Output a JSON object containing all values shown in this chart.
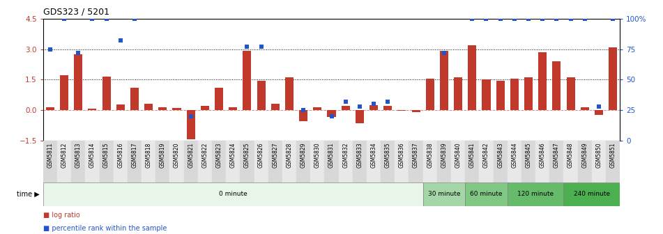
{
  "title": "GDS323 / 5201",
  "samples": [
    "GSM5811",
    "GSM5812",
    "GSM5813",
    "GSM5814",
    "GSM5815",
    "GSM5816",
    "GSM5817",
    "GSM5818",
    "GSM5819",
    "GSM5820",
    "GSM5821",
    "GSM5822",
    "GSM5823",
    "GSM5824",
    "GSM5825",
    "GSM5826",
    "GSM5827",
    "GSM5828",
    "GSM5829",
    "GSM5830",
    "GSM5831",
    "GSM5832",
    "GSM5833",
    "GSM5834",
    "GSM5835",
    "GSM5836",
    "GSM5837",
    "GSM5838",
    "GSM5839",
    "GSM5840",
    "GSM5841",
    "GSM5842",
    "GSM5843",
    "GSM5844",
    "GSM5845",
    "GSM5846",
    "GSM5847",
    "GSM5848",
    "GSM5849",
    "GSM5850",
    "GSM5851"
  ],
  "log_ratio": [
    0.15,
    1.7,
    2.75,
    0.07,
    1.65,
    0.28,
    1.1,
    0.3,
    0.15,
    0.1,
    -1.45,
    0.2,
    1.1,
    0.15,
    2.9,
    1.45,
    0.3,
    1.6,
    -0.55,
    0.15,
    -0.35,
    0.2,
    -0.65,
    0.25,
    0.2,
    -0.05,
    -0.1,
    1.55,
    2.9,
    1.6,
    3.2,
    1.5,
    1.45,
    1.55,
    1.6,
    2.85,
    2.4,
    1.6,
    0.15,
    -0.25,
    3.1
  ],
  "percentile": [
    75,
    100,
    72,
    100,
    100,
    82,
    100,
    null,
    null,
    null,
    20,
    null,
    null,
    null,
    77,
    77,
    null,
    null,
    25,
    null,
    20,
    32,
    28,
    30,
    32,
    null,
    null,
    null,
    72,
    null,
    100,
    100,
    100,
    100,
    100,
    100,
    100,
    100,
    100,
    28,
    100
  ],
  "time_groups": [
    {
      "label": "0 minute",
      "start": 0,
      "end": 27,
      "color": "#e8f5e9"
    },
    {
      "label": "30 minute",
      "start": 27,
      "end": 30,
      "color": "#a5d6a7"
    },
    {
      "label": "60 minute",
      "start": 30,
      "end": 33,
      "color": "#81c784"
    },
    {
      "label": "120 minute",
      "start": 33,
      "end": 37,
      "color": "#66bb6a"
    },
    {
      "label": "240 minute",
      "start": 37,
      "end": 41,
      "color": "#4caf50"
    }
  ],
  "bar_color": "#c0392b",
  "dot_color": "#2255cc",
  "ylim_left": [
    -1.5,
    4.5
  ],
  "ylim_right": [
    0,
    100
  ],
  "yticks_left": [
    -1.5,
    0.0,
    1.5,
    3.0,
    4.5
  ],
  "yticks_right": [
    0,
    25,
    50,
    75,
    100
  ],
  "hlines_dotted": [
    1.5,
    3.0
  ],
  "hline_zero_color": "#c0392b",
  "bg_color": "#ffffff"
}
